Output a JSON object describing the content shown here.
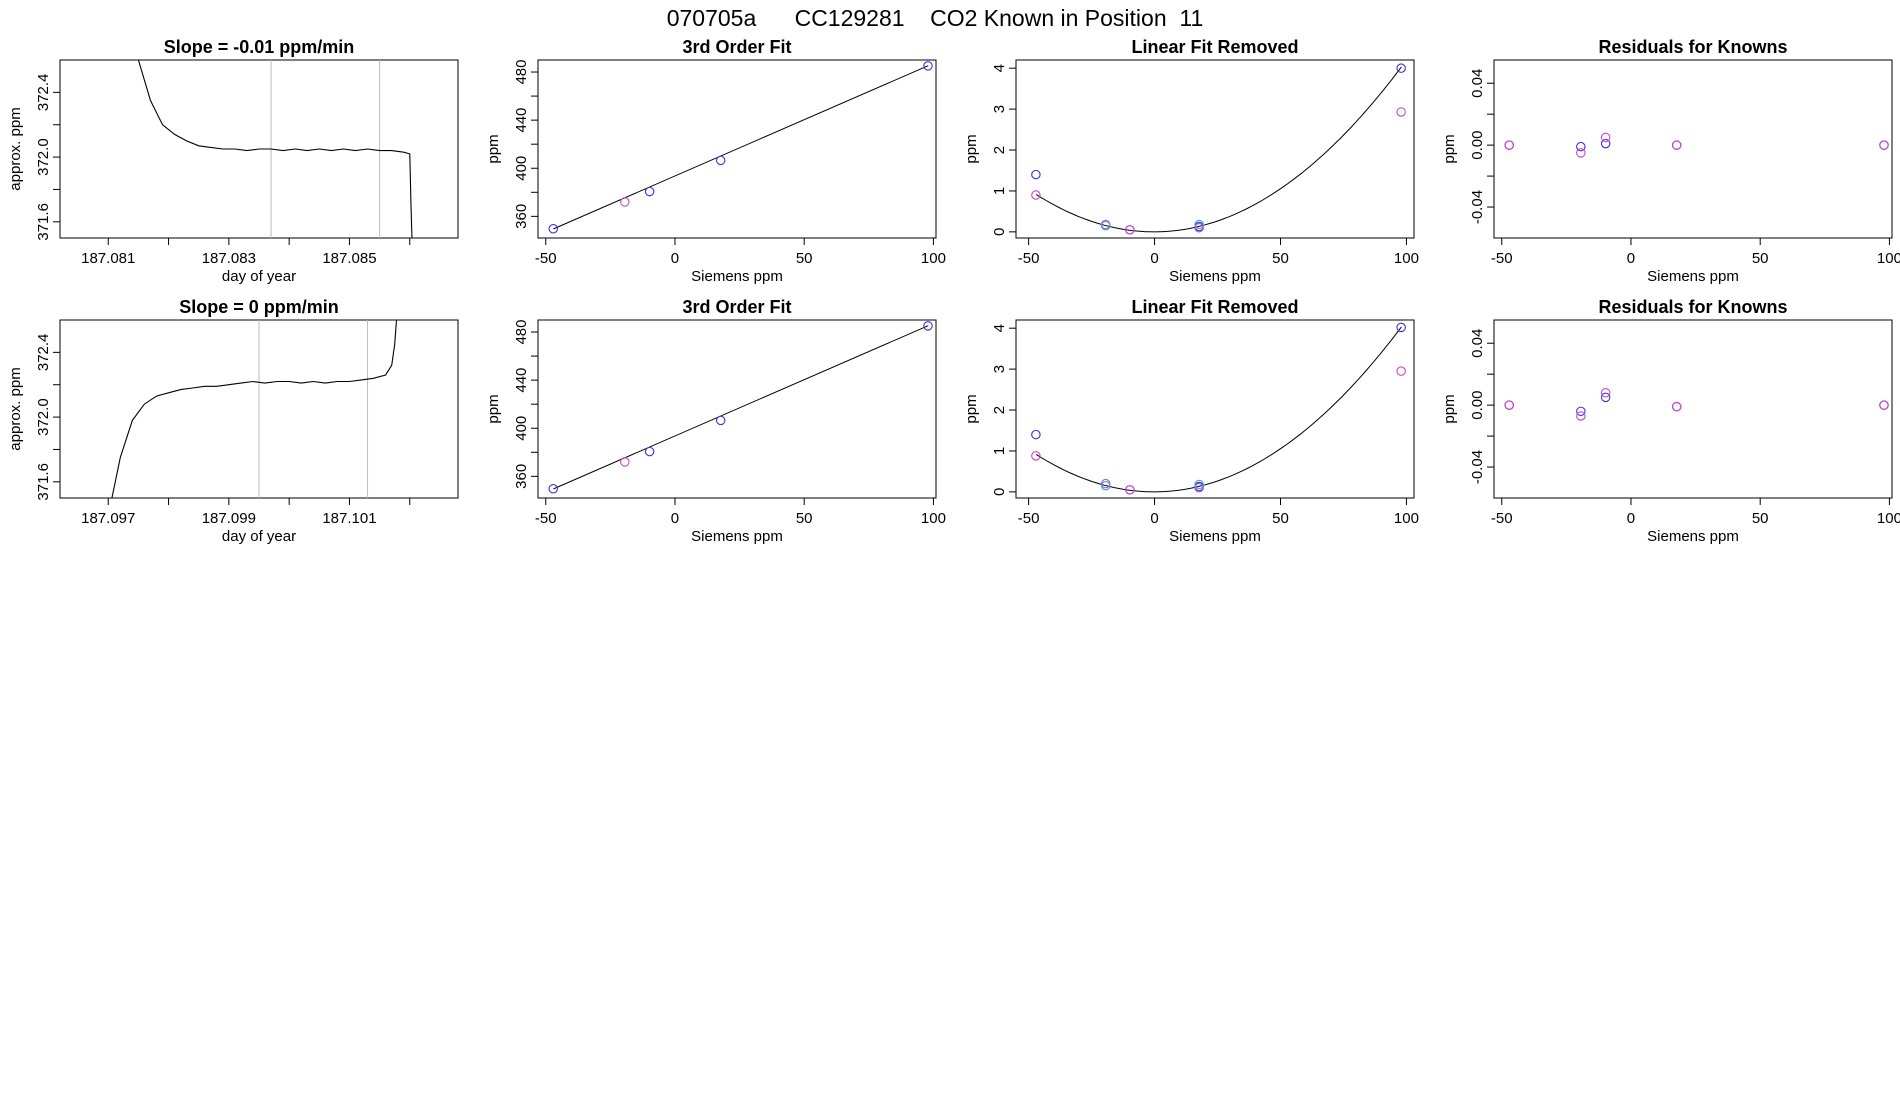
{
  "figure": {
    "title": "070705a      CC129281    CO2 Known in Position  11"
  },
  "colors": {
    "series_a": "#3333dd",
    "series_b": "#cc44cc",
    "series_c": "#33aadd",
    "line": "#000000",
    "vline": "#bbbbbb"
  },
  "chart_data": [
    {
      "id": "r1c1",
      "type": "line",
      "title": "Slope =  -0.01  ppm/min",
      "xlabel": "day of year",
      "ylabel": "approx. ppm",
      "xlim": [
        187.0802,
        187.0868
      ],
      "ylim": [
        371.5,
        372.6
      ],
      "xticks": [
        187.081,
        187.082,
        187.083,
        187.084,
        187.085,
        187.086
      ],
      "xticklabels": [
        "187.081",
        "",
        "187.083",
        "",
        "187.085",
        ""
      ],
      "yticks": [
        371.6,
        371.8,
        372.0,
        372.2,
        372.4
      ],
      "yticklabels": [
        "371.6",
        "",
        "372.0",
        "",
        "372.4"
      ],
      "vlines": [
        187.0837,
        187.0855
      ],
      "series": [
        {
          "x": [
            187.08133,
            187.0815,
            187.0817,
            187.0819,
            187.0821,
            187.0823,
            187.0825,
            187.0827,
            187.0829,
            187.0831,
            187.0833,
            187.0835,
            187.0837,
            187.0839,
            187.0841,
            187.0843,
            187.0845,
            187.0847,
            187.0849,
            187.0851,
            187.0853,
            187.0855,
            187.0857,
            187.0859,
            187.086,
            187.08602,
            187.08606
          ],
          "y": [
            372.9,
            372.6,
            372.35,
            372.2,
            372.14,
            372.1,
            372.07,
            372.06,
            372.05,
            372.05,
            372.04,
            372.05,
            372.05,
            372.04,
            372.05,
            372.04,
            372.05,
            372.04,
            372.05,
            372.04,
            372.05,
            372.04,
            372.04,
            372.03,
            372.02,
            371.7,
            371.2
          ]
        }
      ]
    },
    {
      "id": "r1c2",
      "type": "scatter",
      "title": "3rd Order Fit",
      "xlabel": "Siemens ppm",
      "ylabel": "ppm",
      "xlim": [
        -53,
        101
      ],
      "ylim": [
        342,
        490
      ],
      "xticks": [
        -50,
        0,
        50,
        100
      ],
      "xticklabels": [
        "-50",
        "0",
        "50",
        "100"
      ],
      "yticks": [
        360,
        380,
        400,
        420,
        440,
        460,
        480
      ],
      "yticklabels": [
        "360",
        "",
        "400",
        "",
        "440",
        "",
        "480"
      ],
      "fit_line": {
        "x": [
          -47,
          98
        ],
        "y": [
          349.6,
          485.3
        ]
      },
      "series": [
        {
          "color_key": "series_a",
          "x": [
            -47.1,
            -9.8,
            17.7,
            97.9
          ],
          "y": [
            349.7,
            380.6,
            406.5,
            485.1
          ]
        },
        {
          "color_key": "series_b",
          "x": [
            -19.4
          ],
          "y": [
            372.0
          ]
        }
      ]
    },
    {
      "id": "r1c3",
      "type": "scatter",
      "title": "Linear Fit Removed",
      "xlabel": "Siemens ppm",
      "ylabel": "ppm",
      "xlim": [
        -55,
        103
      ],
      "ylim": [
        -0.15,
        4.2
      ],
      "xticks": [
        -50,
        0,
        50,
        100
      ],
      "xticklabels": [
        "-50",
        "0",
        "50",
        "100"
      ],
      "yticks": [
        0,
        1,
        2,
        3,
        4
      ],
      "yticklabels": [
        "0",
        "1",
        "2",
        "3",
        "4"
      ],
      "curve": {
        "a": 0.000418,
        "b": 0.00017,
        "c": 0,
        "x0": -47,
        "x1": 98
      },
      "series": [
        {
          "color_key": "series_a",
          "x": [
            -47.1,
            -9.8,
            17.7,
            97.9
          ],
          "y": [
            1.4,
            0.05,
            0.13,
            4.0
          ]
        },
        {
          "color_key": "series_b",
          "x": [
            -47.1,
            -19.4,
            -9.8,
            17.7,
            97.9
          ],
          "y": [
            0.9,
            0.18,
            0.05,
            0.1,
            2.93
          ]
        },
        {
          "color_key": "series_c",
          "x": [
            -19.4,
            17.7
          ],
          "y": [
            0.15,
            0.18
          ]
        }
      ]
    },
    {
      "id": "r1c4",
      "type": "scatter",
      "title": "Residuals for Knowns",
      "xlabel": "Siemens ppm",
      "ylabel": "ppm",
      "xlim": [
        -53,
        101
      ],
      "ylim": [
        -0.06,
        0.055
      ],
      "xticks": [
        -50,
        0,
        50,
        100
      ],
      "xticklabels": [
        "-50",
        "0",
        "50",
        "100"
      ],
      "yticks": [
        -0.04,
        -0.02,
        0.0,
        0.02,
        0.04
      ],
      "yticklabels": [
        "-0.04",
        "",
        "0.00",
        "",
        "0.04"
      ],
      "series": [
        {
          "color_key": "series_a",
          "x": [
            -47.1,
            -19.4,
            -9.8,
            17.7,
            97.9
          ],
          "y": [
            0.0,
            -0.001,
            0.001,
            0.0,
            0.0
          ]
        },
        {
          "color_key": "series_b",
          "x": [
            -47.1,
            -19.4,
            -9.8,
            17.7,
            97.9
          ],
          "y": [
            0.0,
            -0.005,
            0.005,
            0.0,
            0.0
          ]
        }
      ]
    },
    {
      "id": "r2c1",
      "type": "line",
      "title": "Slope =  0  ppm/min",
      "xlabel": "day of year",
      "ylabel": "approx. ppm",
      "xlim": [
        187.0962,
        187.1028
      ],
      "ylim": [
        371.5,
        372.6
      ],
      "xticks": [
        187.097,
        187.098,
        187.099,
        187.1,
        187.101,
        187.102
      ],
      "xticklabels": [
        "187.097",
        "",
        "187.099",
        "",
        "187.101",
        ""
      ],
      "yticks": [
        371.6,
        371.8,
        372.0,
        372.2,
        372.4
      ],
      "yticklabels": [
        "371.6",
        "",
        "372.0",
        "",
        "372.4"
      ],
      "vlines": [
        187.0995,
        187.1013
      ],
      "series": [
        {
          "x": [
            187.09706,
            187.0972,
            187.0974,
            187.0976,
            187.0978,
            187.098,
            187.0982,
            187.0984,
            187.0986,
            187.0988,
            187.099,
            187.0992,
            187.0994,
            187.0996,
            187.0998,
            187.1,
            187.1002,
            187.1004,
            187.1006,
            187.1008,
            187.101,
            187.1012,
            187.1014,
            187.1016,
            187.1017,
            187.10175,
            187.1018
          ],
          "y": [
            371.5,
            371.75,
            371.98,
            372.08,
            372.13,
            372.15,
            372.17,
            372.18,
            372.19,
            372.19,
            372.2,
            372.21,
            372.22,
            372.21,
            372.22,
            372.22,
            372.21,
            372.22,
            372.21,
            372.22,
            372.22,
            372.23,
            372.24,
            372.26,
            372.32,
            372.45,
            372.7
          ]
        }
      ]
    },
    {
      "id": "r2c2",
      "type": "scatter",
      "title": "3rd Order Fit",
      "xlabel": "Siemens ppm",
      "ylabel": "ppm",
      "xlim": [
        -53,
        101
      ],
      "ylim": [
        342,
        490
      ],
      "xticks": [
        -50,
        0,
        50,
        100
      ],
      "xticklabels": [
        "-50",
        "0",
        "50",
        "100"
      ],
      "yticks": [
        360,
        380,
        400,
        420,
        440,
        460,
        480
      ],
      "yticklabels": [
        "360",
        "",
        "400",
        "",
        "440",
        "",
        "480"
      ],
      "fit_line": {
        "x": [
          -47,
          98
        ],
        "y": [
          349.6,
          485.3
        ]
      },
      "series": [
        {
          "color_key": "series_a",
          "x": [
            -47.1,
            -9.8,
            17.7,
            97.9
          ],
          "y": [
            349.7,
            380.6,
            406.5,
            485.1
          ]
        },
        {
          "color_key": "series_b",
          "x": [
            -19.4
          ],
          "y": [
            372.0
          ]
        }
      ]
    },
    {
      "id": "r2c3",
      "type": "scatter",
      "title": "Linear Fit Removed",
      "xlabel": "Siemens ppm",
      "ylabel": "ppm",
      "xlim": [
        -55,
        103
      ],
      "ylim": [
        -0.15,
        4.2
      ],
      "xticks": [
        -50,
        0,
        50,
        100
      ],
      "xticklabels": [
        "-50",
        "0",
        "50",
        "100"
      ],
      "yticks": [
        0,
        1,
        2,
        3,
        4
      ],
      "yticklabels": [
        "0",
        "1",
        "2",
        "3",
        "4"
      ],
      "curve": {
        "a": 0.000418,
        "b": 0.00017,
        "c": 0,
        "x0": -47,
        "x1": 98
      },
      "series": [
        {
          "color_key": "series_a",
          "x": [
            -47.1,
            -9.8,
            17.7,
            97.9
          ],
          "y": [
            1.4,
            0.05,
            0.13,
            4.02
          ]
        },
        {
          "color_key": "series_b",
          "x": [
            -47.1,
            -19.4,
            -9.8,
            17.7,
            97.9
          ],
          "y": [
            0.88,
            0.2,
            0.05,
            0.1,
            2.95
          ]
        },
        {
          "color_key": "series_c",
          "x": [
            -19.4,
            17.7
          ],
          "y": [
            0.15,
            0.18
          ]
        }
      ]
    },
    {
      "id": "r2c4",
      "type": "scatter",
      "title": "Residuals for Knowns",
      "xlabel": "Siemens ppm",
      "ylabel": "ppm",
      "xlim": [
        -53,
        101
      ],
      "ylim": [
        -0.06,
        0.055
      ],
      "xticks": [
        -50,
        0,
        50,
        100
      ],
      "xticklabels": [
        "-50",
        "0",
        "50",
        "100"
      ],
      "yticks": [
        -0.04,
        -0.02,
        0.0,
        0.02,
        0.04
      ],
      "yticklabels": [
        "-0.04",
        "",
        "0.00",
        "",
        "0.04"
      ],
      "series": [
        {
          "color_key": "series_a",
          "x": [
            -47.1,
            -19.4,
            -9.8,
            17.7,
            97.9
          ],
          "y": [
            0.0,
            -0.004,
            0.005,
            -0.001,
            0.0
          ]
        },
        {
          "color_key": "series_b",
          "x": [
            -47.1,
            -19.4,
            -9.8,
            17.7,
            97.9
          ],
          "y": [
            0.0,
            -0.007,
            0.008,
            -0.001,
            0.0
          ]
        }
      ]
    }
  ]
}
